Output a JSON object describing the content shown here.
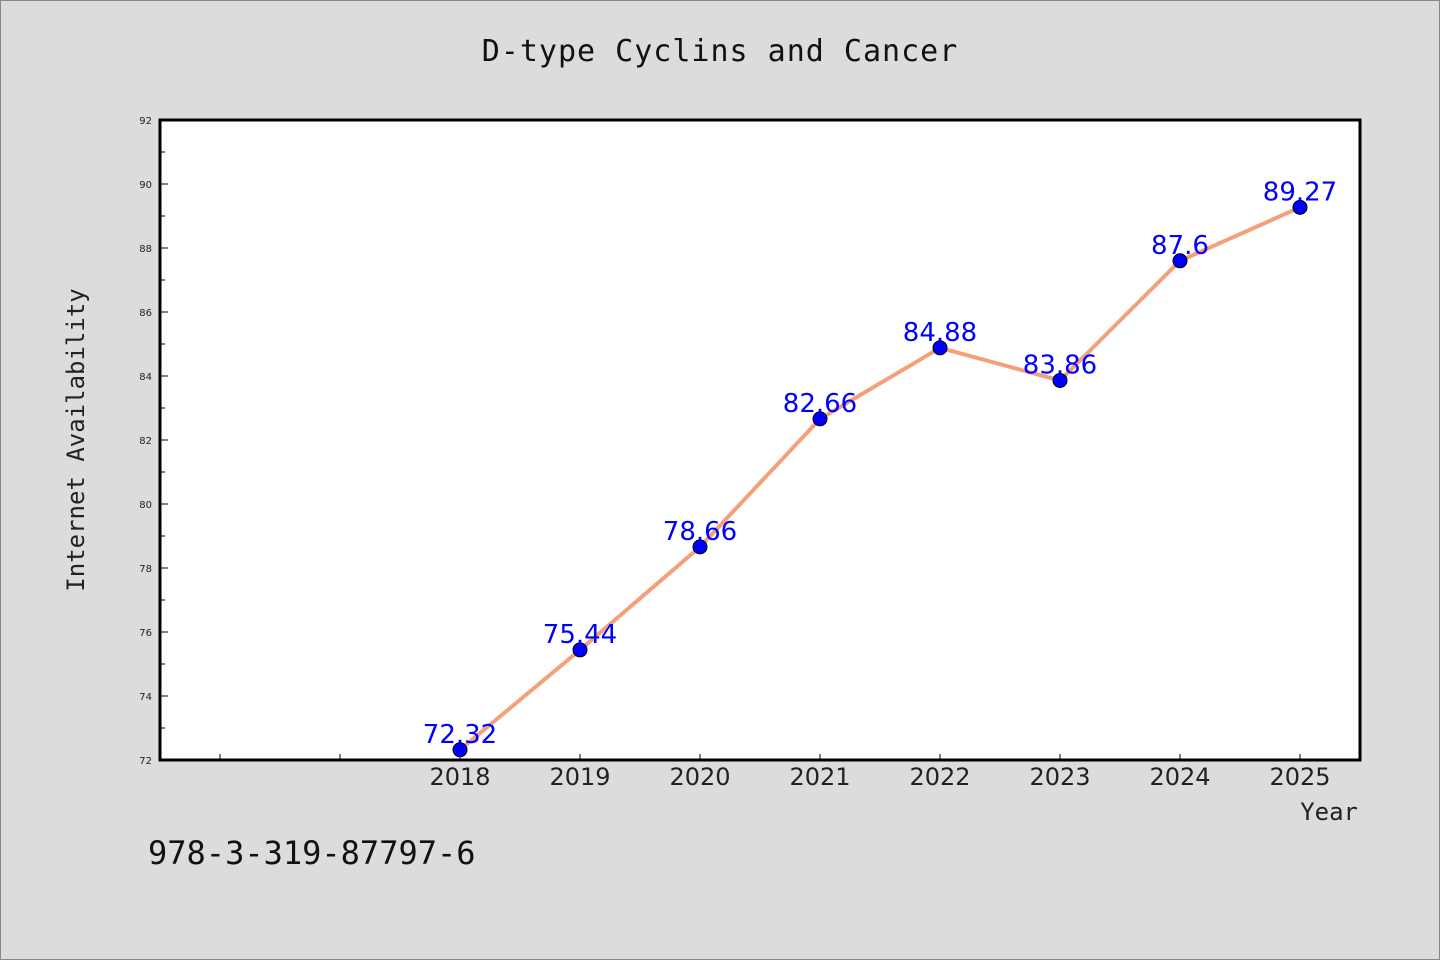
{
  "chart_data": {
    "type": "line",
    "title": "D-type Cyclins and Cancer",
    "xlabel": "Year",
    "ylabel": "Internet Availability",
    "categories": [
      "2018",
      "2019",
      "2020",
      "2021",
      "2022",
      "2023",
      "2024",
      "2025"
    ],
    "series": [
      {
        "values": [
          72.32,
          75.44,
          78.66,
          82.66,
          84.88,
          83.86,
          87.6,
          89.27
        ]
      }
    ],
    "data_labels": [
      "72.32",
      "75.44",
      "78.66",
      "82.66",
      "84.88",
      "83.86",
      "87.6",
      "89.27"
    ],
    "y_ticks": [
      "72",
      "74",
      "76",
      "78",
      "80",
      "82",
      "84",
      "86",
      "88",
      "90",
      "92"
    ],
    "ylim": [
      72,
      92
    ],
    "x_index_range": [
      -2.5,
      7.5
    ],
    "grid": false,
    "line_color": "#f4a07a",
    "marker_color": "#0000ff",
    "label_color": "#0000ff",
    "background": "#dcdcdc",
    "plot_background": "#ffffff"
  },
  "footer": {
    "isbn": "978-3-319-87797-6"
  }
}
